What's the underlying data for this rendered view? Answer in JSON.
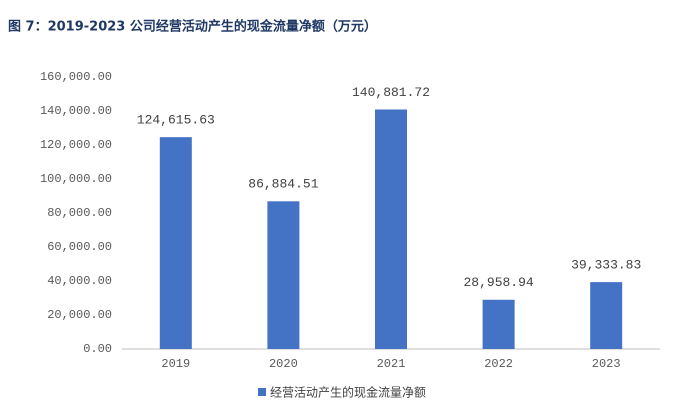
{
  "chart_data": {
    "type": "bar",
    "title": "图 7：2019-2023 公司经营活动产生的现金流量净额（万元）",
    "categories": [
      "2019",
      "2020",
      "2021",
      "2022",
      "2023"
    ],
    "series": [
      {
        "name": "经营活动产生的现金流量净额",
        "color": "#4472c4",
        "values": [
          124615.63,
          86884.51,
          140881.72,
          28958.94,
          39333.83
        ],
        "value_labels": [
          "124,615.63",
          "86,884.51",
          "140,881.72",
          "28,958.94",
          "39,333.83"
        ]
      }
    ],
    "ylim": [
      0,
      160000
    ],
    "yticks": [
      {
        "value": 0,
        "label": "0.00"
      },
      {
        "value": 20000,
        "label": "20,000.00"
      },
      {
        "value": 40000,
        "label": "40,000.00"
      },
      {
        "value": 60000,
        "label": "60,000.00"
      },
      {
        "value": 80000,
        "label": "80,000.00"
      },
      {
        "value": 100000,
        "label": "100,000.00"
      },
      {
        "value": 120000,
        "label": "120,000.00"
      },
      {
        "value": 140000,
        "label": "140,000.00"
      },
      {
        "value": 160000,
        "label": "160,000.00"
      }
    ],
    "grid": false
  }
}
